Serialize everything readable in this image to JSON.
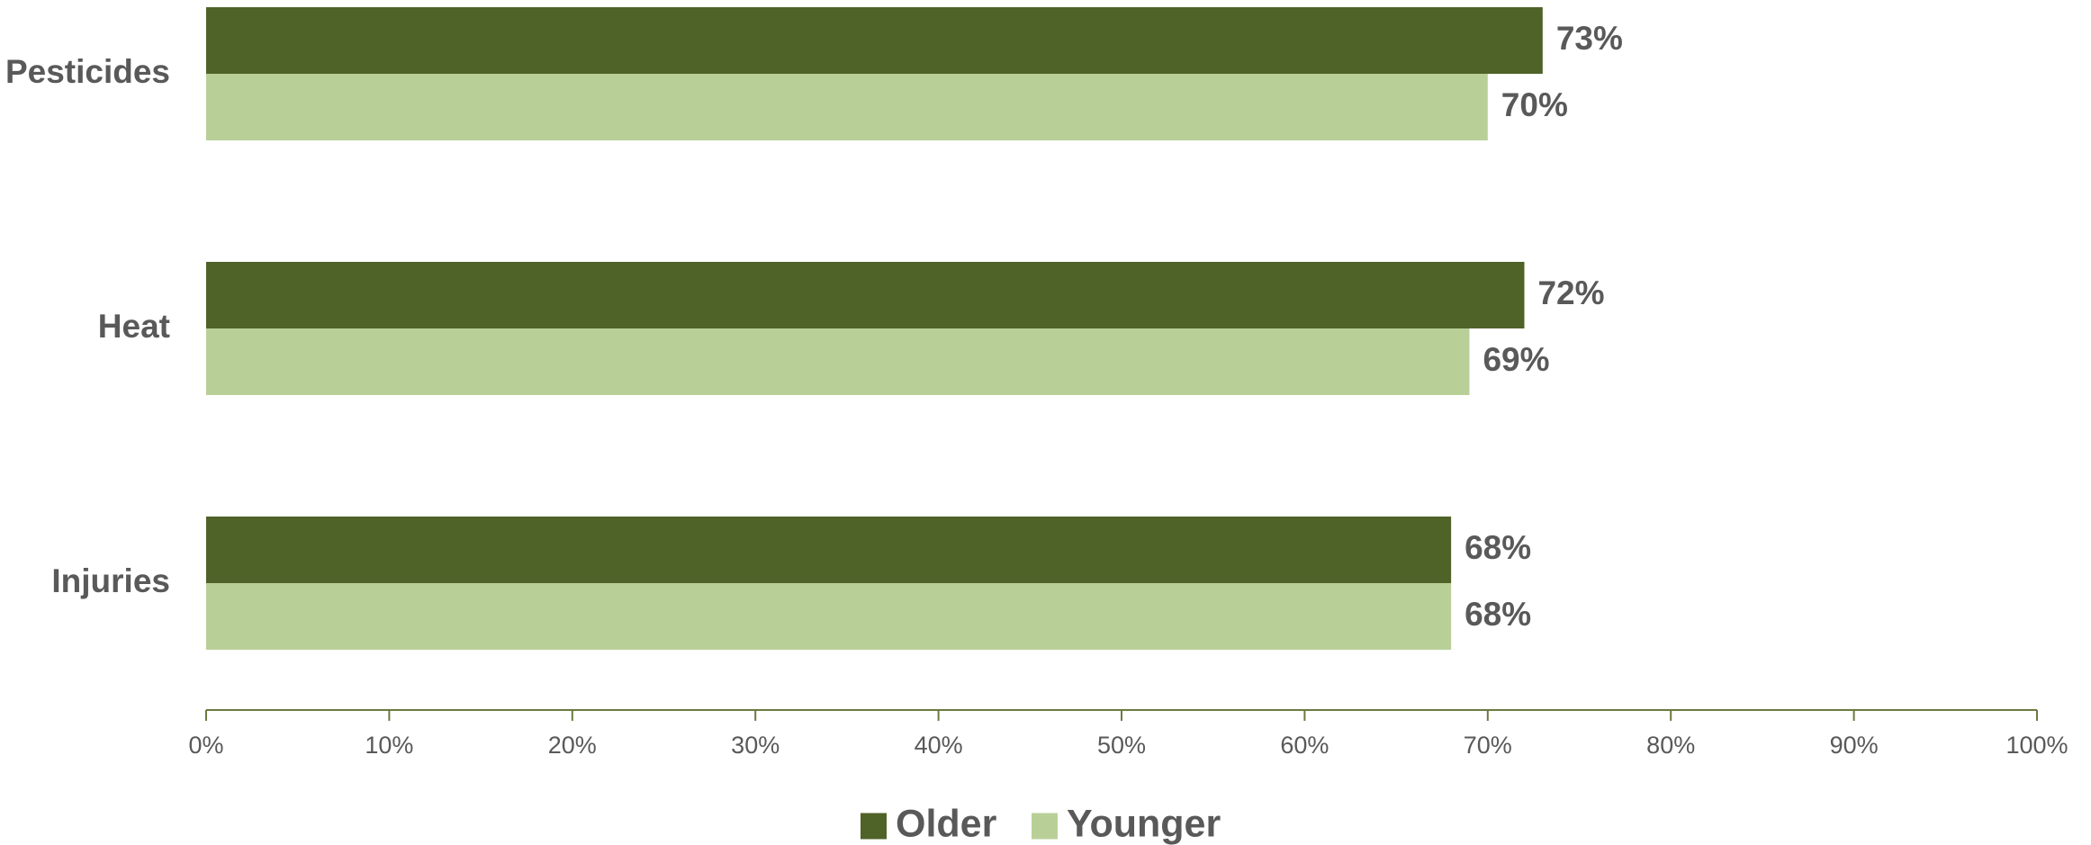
{
  "chart_data": {
    "type": "bar",
    "orientation": "horizontal",
    "categories": [
      "Pesticides",
      "Heat",
      "Injuries"
    ],
    "series": [
      {
        "name": "Older",
        "values": [
          73,
          72,
          68
        ],
        "color": "#4f6228",
        "labels": [
          "73%",
          "72%",
          "68%"
        ]
      },
      {
        "name": "Younger",
        "values": [
          70,
          69,
          68
        ],
        "color": "#b8d098",
        "labels": [
          "70%",
          "69%",
          "68%"
        ]
      }
    ],
    "xlim": [
      0,
      100
    ],
    "xticks": [
      0,
      10,
      20,
      30,
      40,
      50,
      60,
      70,
      80,
      90,
      100
    ],
    "xtick_labels": [
      "0%",
      "10%",
      "20%",
      "30%",
      "40%",
      "50%",
      "60%",
      "70%",
      "80%",
      "90%",
      "100%"
    ],
    "axis_color": "#6b7a3f",
    "grid": false,
    "legend_position": "bottom"
  }
}
